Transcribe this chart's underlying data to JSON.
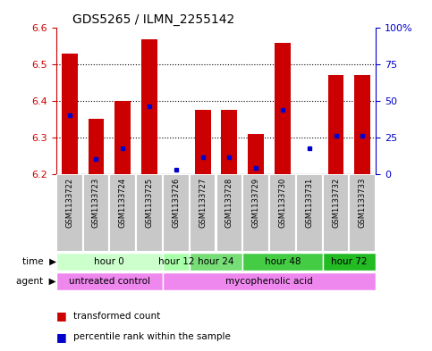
{
  "title": "GDS5265 / ILMN_2255142",
  "samples": [
    "GSM1133722",
    "GSM1133723",
    "GSM1133724",
    "GSM1133725",
    "GSM1133726",
    "GSM1133727",
    "GSM1133728",
    "GSM1133729",
    "GSM1133730",
    "GSM1133731",
    "GSM1133732",
    "GSM1133733"
  ],
  "bar_values": [
    6.53,
    6.35,
    6.4,
    6.57,
    6.2,
    6.375,
    6.375,
    6.31,
    6.56,
    6.2,
    6.47,
    6.47
  ],
  "blue_values": [
    6.36,
    6.24,
    6.27,
    6.385,
    6.21,
    6.245,
    6.245,
    6.215,
    6.375,
    6.27,
    6.305,
    6.305
  ],
  "bar_bottom": 6.2,
  "ylim_left": [
    6.2,
    6.6
  ],
  "ylim_right": [
    0,
    100
  ],
  "yticks_left": [
    6.2,
    6.3,
    6.4,
    6.5,
    6.6
  ],
  "yticks_right": [
    0,
    25,
    50,
    75,
    100
  ],
  "ytick_labels_right": [
    "0",
    "25",
    "50",
    "75",
    "100%"
  ],
  "bar_color": "#cc0000",
  "blue_color": "#0000cc",
  "sample_bg_color": "#c8c8c8",
  "time_groups": [
    {
      "label": "hour 0",
      "start": 0,
      "end": 4,
      "color": "#ccffcc"
    },
    {
      "label": "hour 12",
      "start": 4,
      "end": 5,
      "color": "#aaffaa"
    },
    {
      "label": "hour 24",
      "start": 5,
      "end": 7,
      "color": "#77dd77"
    },
    {
      "label": "hour 48",
      "start": 7,
      "end": 10,
      "color": "#44cc44"
    },
    {
      "label": "hour 72",
      "start": 10,
      "end": 12,
      "color": "#22bb22"
    }
  ],
  "agent_groups": [
    {
      "label": "untreated control",
      "start": 0,
      "end": 4,
      "color": "#ee88ee"
    },
    {
      "label": "mycophenolic acid",
      "start": 4,
      "end": 12,
      "color": "#ee88ee"
    }
  ],
  "legend_bar_label": "transformed count",
  "legend_blue_label": "percentile rank within the sample",
  "grid_color": "#000000",
  "axis_color_left": "#cc0000",
  "axis_color_right": "#0000cc"
}
